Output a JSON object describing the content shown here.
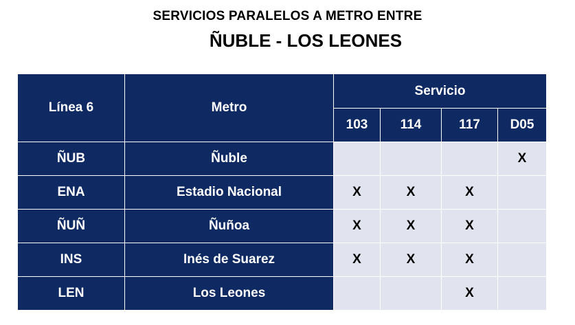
{
  "title_line1": "SERVICIOS PARALELOS A METRO ENTRE",
  "title_line2": "ÑUBLE - LOS LEONES",
  "headers": {
    "linea": "Línea 6",
    "metro": "Metro",
    "servicio": "Servicio",
    "services": [
      "103",
      "114",
      "117",
      "D05"
    ]
  },
  "rows": [
    {
      "code": "ÑUB",
      "station": "Ñuble",
      "marks": [
        "",
        "",
        "",
        "X"
      ]
    },
    {
      "code": "ENA",
      "station": "Estadio Nacional",
      "marks": [
        "X",
        "X",
        "X",
        ""
      ]
    },
    {
      "code": "ÑUÑ",
      "station": "Ñuñoa",
      "marks": [
        "X",
        "X",
        "X",
        ""
      ]
    },
    {
      "code": "INS",
      "station": "Inés de Suarez",
      "marks": [
        "X",
        "X",
        "X",
        ""
      ]
    },
    {
      "code": "LEN",
      "station": "Los Leones",
      "marks": [
        "",
        "",
        "X",
        ""
      ]
    }
  ],
  "colors": {
    "header_bg": "#0f2a63",
    "cell_bg": "#e1e3ee"
  }
}
